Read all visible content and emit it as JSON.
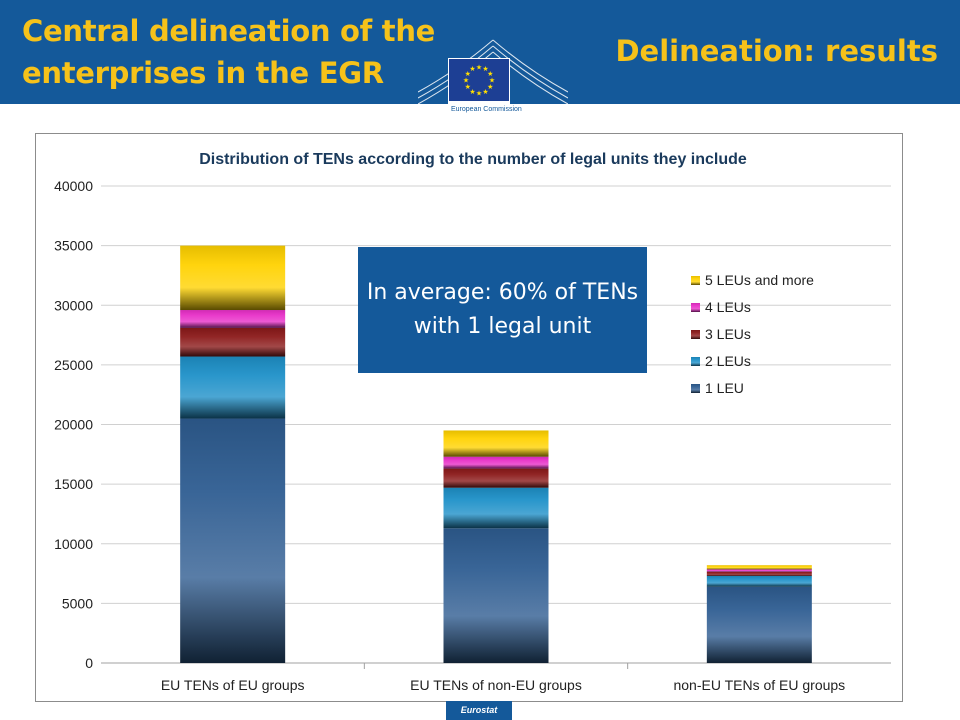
{
  "header": {
    "title_left": "Central delineation of the enterprises in the EGR",
    "title_right": "Delineation: results",
    "logo_text": "European Commission",
    "background_color": "#14599a",
    "title_color": "#f6c21a"
  },
  "callout": {
    "text": "In average: 60% of TENs with 1 legal unit"
  },
  "footer": {
    "label": "Eurostat"
  },
  "chart_data": {
    "type": "bar",
    "stacked": true,
    "title": "Distribution of TENs according to the number of legal units they include",
    "categories": [
      "EU TENs of EU groups",
      "EU TENs of non-EU groups",
      "non-EU TENs of EU groups"
    ],
    "series": [
      {
        "name": "1 LEU",
        "values": [
          20500,
          11300,
          6400
        ],
        "color": "#2f5d91"
      },
      {
        "name": "2 LEUs",
        "values": [
          5200,
          3400,
          900
        ],
        "color": "#1e90c8"
      },
      {
        "name": "3 LEUs",
        "values": [
          2400,
          1600,
          350
        ],
        "color": "#8b1a1a"
      },
      {
        "name": "4 LEUs",
        "values": [
          1500,
          1000,
          200
        ],
        "color": "#e830c8"
      },
      {
        "name": "5 LEUs and more",
        "values": [
          5400,
          2200,
          350
        ],
        "color": "#ffd200"
      }
    ],
    "ylim": [
      0,
      40000
    ],
    "yticks": [
      "0",
      "5000",
      "10000",
      "15000",
      "20000",
      "25000",
      "30000",
      "35000",
      "40000"
    ],
    "grid": true,
    "legend_position": "right",
    "xlabel": "",
    "ylabel": ""
  }
}
